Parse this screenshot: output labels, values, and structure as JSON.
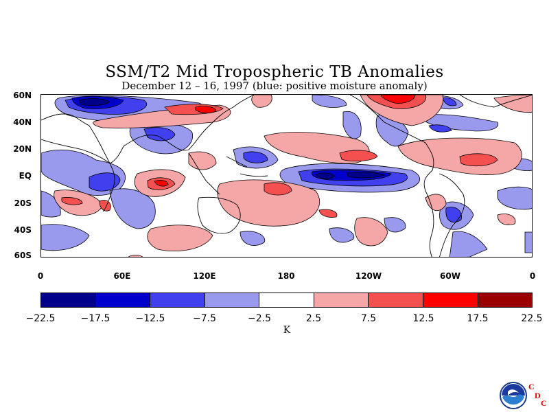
{
  "title": "SSM/T2 Mid Tropospheric TB Anomalies",
  "subtitle": "December 12 – 16, 1997 (blue: positive moisture anomaly)",
  "lat_labels": [
    "60N",
    "40N",
    "20N",
    "EQ",
    "20S",
    "40S",
    "60S"
  ],
  "lon_labels": [
    "0",
    "60E",
    "120E",
    "180",
    "120W",
    "60W",
    "0"
  ],
  "colorbar": {
    "labels": [
      "−22.5",
      "−17.5",
      "−12.5",
      "−7.5",
      "−2.5",
      "2.5",
      "7.5",
      "12.5",
      "17.5",
      "22.5"
    ],
    "colors": [
      "#00008b",
      "#0000cd",
      "#4040ee",
      "#9999ee",
      "#ffffff",
      "#f5a6a6",
      "#f55050",
      "#ff0000",
      "#990000"
    ],
    "unit": "K"
  },
  "logo": {
    "name": "NOAA",
    "letters": [
      "C",
      "D",
      "C"
    ]
  },
  "colors": {
    "neg2": "#4040ee",
    "neg1": "#9999ee",
    "pos1": "#f5a6a6",
    "pos2": "#f55050",
    "neg3": "#0000cd",
    "neg4": "#00008b"
  }
}
